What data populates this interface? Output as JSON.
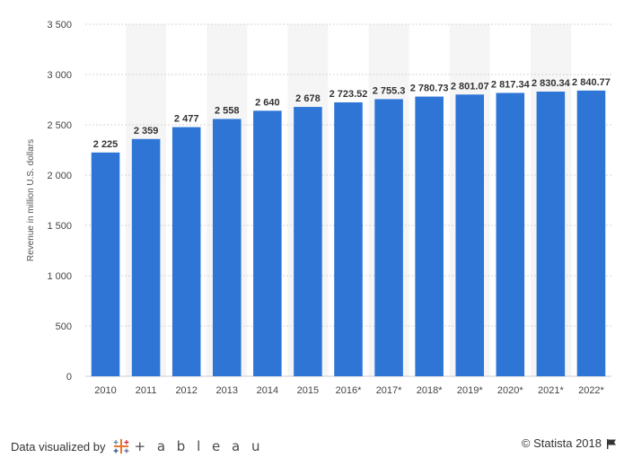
{
  "chart_data": {
    "type": "bar",
    "categories": [
      "2010",
      "2011",
      "2012",
      "2013",
      "2014",
      "2015",
      "2016*",
      "2017*",
      "2018*",
      "2019*",
      "2020*",
      "2021*",
      "2022*"
    ],
    "values": [
      2225,
      2359,
      2477,
      2558,
      2640,
      2678,
      2723.52,
      2755.3,
      2780.73,
      2801.07,
      2817.34,
      2830.34,
      2840.77
    ],
    "value_labels": [
      "2 225",
      "2 359",
      "2 477",
      "2 558",
      "2 640",
      "2 678",
      "2 723.52",
      "2 755.3",
      "2 780.73",
      "2 801.07",
      "2 817.34",
      "2 830.34",
      "2 840.77"
    ],
    "ylabel": "Revenue in million U.S. dollars",
    "ylim": [
      0,
      3500
    ],
    "yticks": [
      0,
      500,
      1000,
      1500,
      2000,
      2500,
      3000,
      3500
    ],
    "ytick_labels": [
      "0",
      "500",
      "1 000",
      "1 500",
      "2 000",
      "2 500",
      "3 000",
      "3 500"
    ],
    "grid": true,
    "bar_color": "#2e75d6"
  },
  "footer": {
    "credit": "Data visualized by",
    "tableau": "+ a b l e a u",
    "copyright": "© Statista 2018"
  }
}
